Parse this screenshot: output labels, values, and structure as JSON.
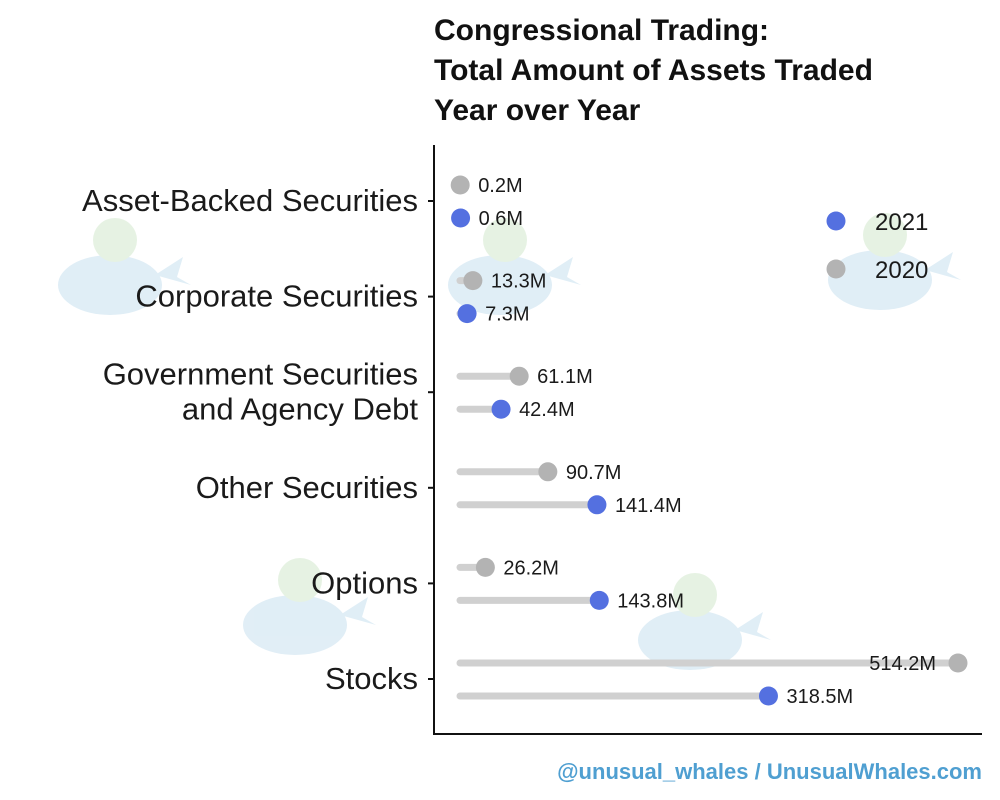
{
  "chart_data": {
    "type": "dot-lollipop",
    "title_lines": [
      "Congressional Trading:",
      "Total Amount of Assets Traded",
      "Year over Year"
    ],
    "categories": [
      {
        "lines": [
          "Asset-Backed Securities"
        ]
      },
      {
        "lines": [
          "Corporate Securities"
        ]
      },
      {
        "lines": [
          "Government Securities",
          "and Agency Debt"
        ]
      },
      {
        "lines": [
          "Other Securities"
        ]
      },
      {
        "lines": [
          "Options"
        ]
      },
      {
        "lines": [
          "Stocks"
        ]
      }
    ],
    "series": [
      {
        "name": "2020",
        "color": "#b3b3b3",
        "values": [
          0.2,
          13.3,
          61.1,
          90.7,
          26.2,
          514.2
        ],
        "labels": [
          "0.2M",
          "13.3M",
          "61.1M",
          "90.7M",
          "26.2M",
          "514.2M"
        ]
      },
      {
        "name": "2021",
        "color": "#5470e0",
        "values": [
          0.6,
          7.3,
          42.4,
          141.4,
          143.8,
          318.5
        ],
        "labels": [
          "0.6M",
          "7.3M",
          "42.4M",
          "141.4M",
          "143.8M",
          "318.5M"
        ]
      }
    ],
    "legend": [
      {
        "name": "2021",
        "color": "#5470e0"
      },
      {
        "name": "2020",
        "color": "#b3b3b3"
      }
    ],
    "legend_position": "top-right",
    "units": "millions of USD",
    "xlim": [
      0,
      514.2
    ],
    "stem_color": "#d0d0d0"
  },
  "credit": {
    "text": "@unusual_whales / UnusualWhales.com",
    "color": "#4f9fd1"
  }
}
